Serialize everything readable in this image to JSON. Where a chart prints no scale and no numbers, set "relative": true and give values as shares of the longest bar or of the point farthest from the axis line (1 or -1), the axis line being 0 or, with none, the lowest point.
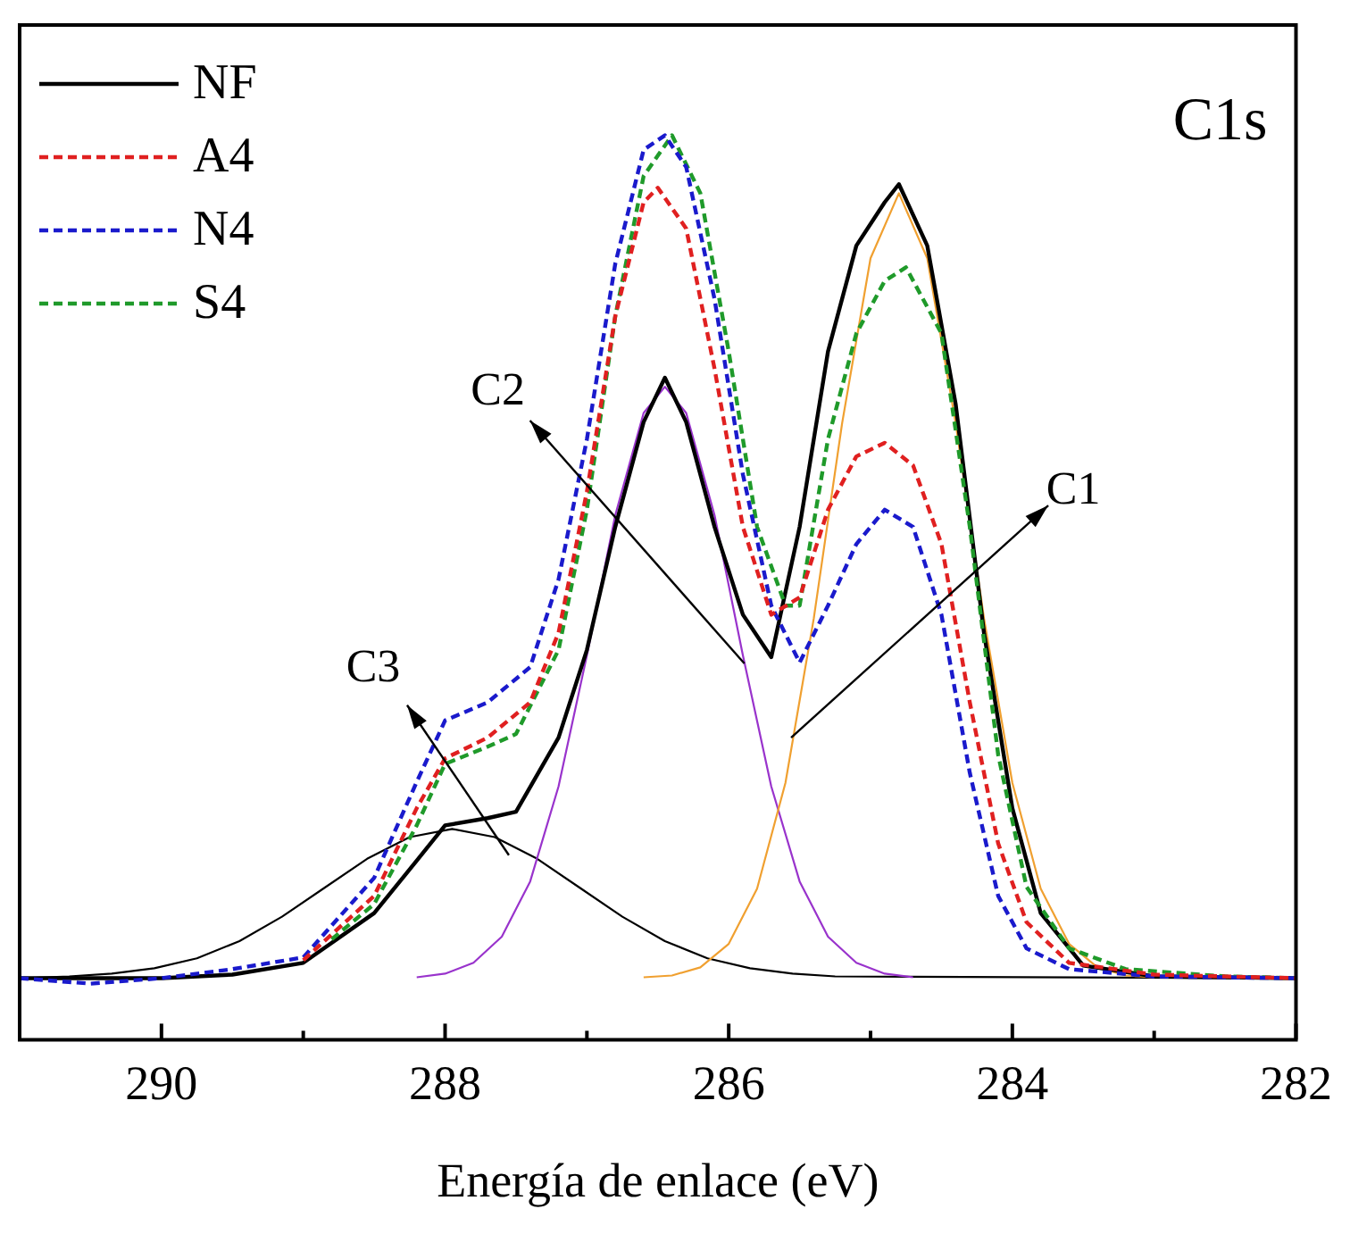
{
  "chart_data": {
    "type": "line",
    "relative": true,
    "xlabel": "Energía de enlace (eV)",
    "xlim": [
      291,
      282
    ],
    "xticks": [
      290,
      {
        "value": 289,
        "label": null
      },
      288,
      {
        "value": 287,
        "label": null
      },
      286,
      {
        "value": 285,
        "label": null
      },
      284,
      {
        "value": 283,
        "label": null
      },
      282
    ],
    "legend": "top left",
    "annotations": [
      "C1s",
      {
        "text": "C1",
        "x": 285.56,
        "y": 0.334
      },
      {
        "text": "C2",
        "x": 285.89,
        "y": 0.416
      },
      {
        "text": "C3",
        "x": 287.55,
        "y": 0.204
      }
    ],
    "series": [
      {
        "name": "NF",
        "color": "#000000",
        "line_style": "solid",
        "x": [
          291,
          290,
          289.5,
          289,
          288.5,
          288.2,
          288,
          287.7,
          287.5,
          287.2,
          287,
          286.8,
          286.6,
          286.45,
          286.3,
          286.1,
          285.9,
          285.7,
          285.5,
          285.3,
          285.1,
          284.9,
          284.8,
          284.6,
          284.4,
          284.2,
          284,
          283.8,
          283.5,
          283,
          282
        ],
        "values": [
          0.068,
          0.068,
          0.072,
          0.085,
          0.14,
          0.198,
          0.237,
          0.245,
          0.252,
          0.334,
          0.431,
          0.567,
          0.683,
          0.732,
          0.683,
          0.567,
          0.47,
          0.423,
          0.567,
          0.761,
          0.878,
          0.926,
          0.946,
          0.878,
          0.703,
          0.45,
          0.256,
          0.14,
          0.082,
          0.07,
          0.068
        ]
      },
      {
        "name": "A4",
        "color": "#e02020",
        "line_style": "dashed",
        "x": [
          289,
          288.5,
          288.2,
          288,
          287.7,
          287.4,
          287.2,
          287,
          286.8,
          286.6,
          286.5,
          286.3,
          286.1,
          285.9,
          285.7,
          285.5,
          285.3,
          285.1,
          284.9,
          284.7,
          284.5,
          284.3,
          284.1,
          283.9,
          283.6,
          283,
          282
        ],
        "values": [
          0.088,
          0.159,
          0.256,
          0.311,
          0.334,
          0.373,
          0.45,
          0.606,
          0.8,
          0.926,
          0.942,
          0.897,
          0.742,
          0.567,
          0.47,
          0.489,
          0.586,
          0.645,
          0.66,
          0.635,
          0.548,
          0.373,
          0.217,
          0.13,
          0.085,
          0.072,
          0.068
        ]
      },
      {
        "name": "N4",
        "color": "#1a1acc",
        "line_style": "dashed",
        "x": [
          291,
          290.5,
          290,
          289.5,
          289,
          288.5,
          288.2,
          288,
          287.7,
          287.4,
          287.2,
          287,
          286.8,
          286.6,
          286.45,
          286.3,
          286.1,
          285.9,
          285.7,
          285.5,
          285.3,
          285.1,
          284.9,
          284.7,
          284.5,
          284.3,
          284.1,
          283.9,
          283.6,
          283,
          282
        ],
        "values": [
          0.068,
          0.062,
          0.068,
          0.078,
          0.091,
          0.179,
          0.285,
          0.353,
          0.373,
          0.412,
          0.509,
          0.664,
          0.858,
          0.984,
          1,
          0.965,
          0.819,
          0.625,
          0.48,
          0.417,
          0.48,
          0.548,
          0.586,
          0.567,
          0.47,
          0.295,
          0.159,
          0.101,
          0.078,
          0.07,
          0.068
        ]
      },
      {
        "name": "S4",
        "color": "#1f9a2a",
        "line_style": "dashed",
        "x": [
          288.8,
          288.5,
          288.2,
          288,
          287.7,
          287.5,
          287.2,
          287,
          286.8,
          286.6,
          286.4,
          286.2,
          286,
          285.8,
          285.6,
          285.5,
          285.3,
          285.1,
          284.9,
          284.75,
          284.5,
          284.3,
          284.1,
          283.9,
          283.6,
          283.2,
          282.5,
          282
        ],
        "values": [
          0.111,
          0.15,
          0.237,
          0.305,
          0.324,
          0.338,
          0.431,
          0.586,
          0.8,
          0.955,
          1,
          0.936,
          0.761,
          0.567,
          0.48,
          0.48,
          0.664,
          0.781,
          0.839,
          0.854,
          0.781,
          0.567,
          0.315,
          0.169,
          0.101,
          0.078,
          0.07,
          0.068
        ]
      },
      {
        "color": "#f0a030",
        "line_style": "solid",
        "x": [
          286.6,
          286.4,
          286.2,
          286,
          285.8,
          285.6,
          285.4,
          285.2,
          285,
          284.8,
          284.6,
          284.4,
          284.2,
          284,
          283.8,
          283.6,
          283.4,
          283.2,
          283
        ],
        "values": [
          0.069,
          0.071,
          0.08,
          0.106,
          0.167,
          0.284,
          0.466,
          0.682,
          0.864,
          0.936,
          0.864,
          0.682,
          0.466,
          0.284,
          0.167,
          0.106,
          0.08,
          0.071,
          0.069
        ]
      },
      {
        "color": "#9933cc",
        "line_style": "solid",
        "x": [
          288.2,
          288,
          287.8,
          287.6,
          287.4,
          287.2,
          287,
          286.8,
          286.6,
          286.45,
          286.3,
          286.1,
          285.9,
          285.7,
          285.5,
          285.3,
          285.1,
          284.9,
          284.7
        ],
        "values": [
          0.069,
          0.073,
          0.085,
          0.114,
          0.175,
          0.28,
          0.425,
          0.58,
          0.693,
          0.722,
          0.693,
          0.58,
          0.425,
          0.28,
          0.175,
          0.114,
          0.085,
          0.073,
          0.069
        ]
      },
      {
        "color": "#000000",
        "line_style": "solid",
        "x": [
          291,
          290.65,
          290.35,
          290.05,
          289.75,
          289.45,
          289.15,
          288.85,
          288.55,
          288.25,
          287.95,
          287.65,
          287.35,
          287.05,
          286.75,
          286.45,
          286.15,
          285.85,
          285.55,
          285.25,
          282
        ],
        "values": [
          0.068,
          0.07,
          0.073,
          0.079,
          0.09,
          0.109,
          0.136,
          0.168,
          0.2,
          0.224,
          0.233,
          0.224,
          0.2,
          0.168,
          0.136,
          0.109,
          0.09,
          0.079,
          0.073,
          0.07,
          0.068
        ]
      }
    ]
  }
}
